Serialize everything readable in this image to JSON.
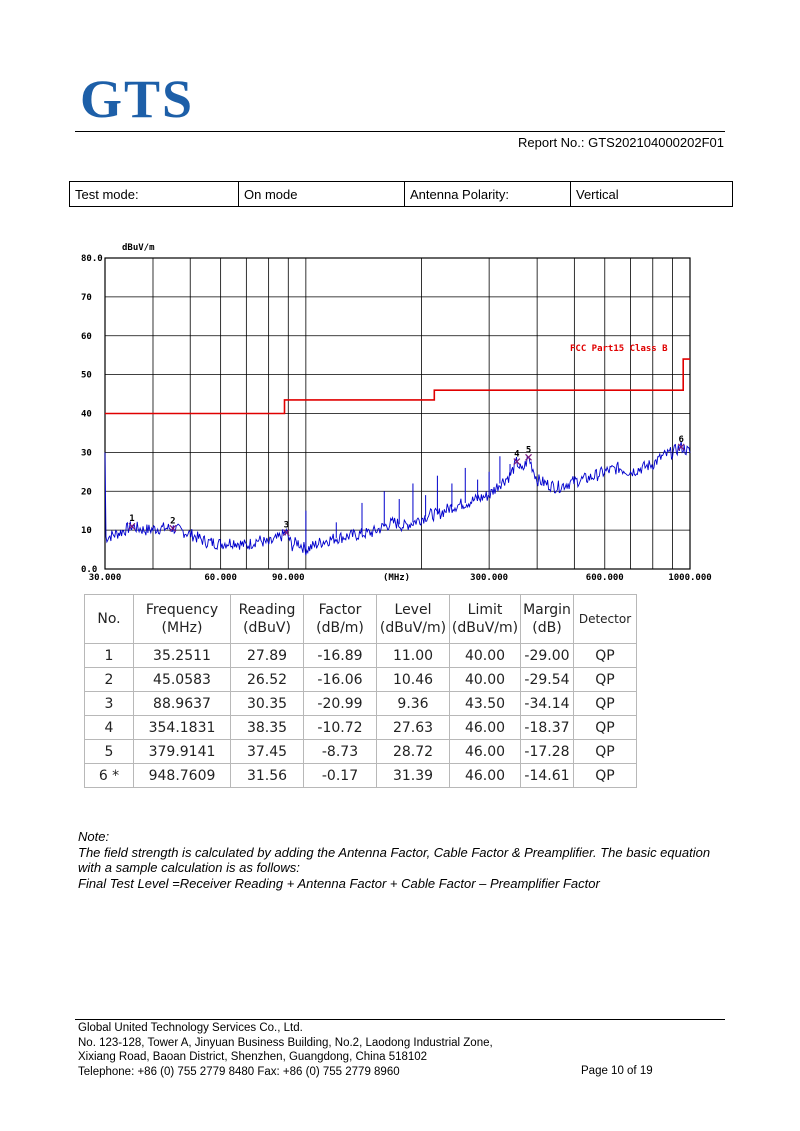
{
  "header": {
    "logo_text": "GTS",
    "report_no": "Report No.: GTS202104000202F01"
  },
  "test_info": {
    "mode_label": "Test mode:",
    "mode_value": "On mode",
    "polarity_label": "Antenna Polarity:",
    "polarity_value": "Vertical"
  },
  "chart": {
    "y_unit": "dBuV/m",
    "x_unit": "(MHz)",
    "limit_label": "FCC Part15 Class B",
    "y_ticks": [
      "80.0",
      "70",
      "60",
      "50",
      "40",
      "30",
      "20",
      "10",
      "0.0"
    ],
    "x_ticks": [
      "30.000",
      "60.000",
      "90.000",
      "300.000",
      "600.000",
      "1000.000"
    ]
  },
  "chart_data": {
    "type": "line",
    "xscale": "log",
    "xlim": [
      30,
      1000
    ],
    "ylim": [
      0,
      80
    ],
    "ylabel": "dBuV/m",
    "xlabel": "(MHz)",
    "grid": true,
    "limit_series": {
      "name": "FCC Part15 Class B",
      "color": "#e00000",
      "points": [
        [
          30,
          40
        ],
        [
          88,
          40
        ],
        [
          88,
          43.5
        ],
        [
          216,
          43.5
        ],
        [
          216,
          46
        ],
        [
          960,
          46
        ],
        [
          960,
          54
        ],
        [
          1000,
          54
        ]
      ]
    },
    "trace_series": {
      "color": "#0000cc",
      "points": [
        [
          30,
          8
        ],
        [
          33,
          9.5
        ],
        [
          35.25,
          11
        ],
        [
          38,
          10
        ],
        [
          42,
          10.5
        ],
        [
          45.06,
          10.5
        ],
        [
          50,
          9
        ],
        [
          55,
          7
        ],
        [
          60,
          6.5
        ],
        [
          65,
          7
        ],
        [
          70,
          6
        ],
        [
          75,
          7.5
        ],
        [
          80,
          6.5
        ],
        [
          85,
          8
        ],
        [
          88.96,
          9.4
        ],
        [
          92,
          6
        ],
        [
          95,
          7
        ],
        [
          100,
          5
        ],
        [
          105,
          6
        ],
        [
          110,
          7
        ],
        [
          120,
          8
        ],
        [
          130,
          8.5
        ],
        [
          140,
          9
        ],
        [
          150,
          9.5
        ],
        [
          160,
          11
        ],
        [
          170,
          12
        ],
        [
          180,
          11
        ],
        [
          190,
          12
        ],
        [
          200,
          13
        ],
        [
          210,
          14
        ],
        [
          220,
          14
        ],
        [
          230,
          15
        ],
        [
          240,
          16
        ],
        [
          260,
          17
        ],
        [
          280,
          18
        ],
        [
          300,
          19
        ],
        [
          320,
          22
        ],
        [
          340,
          24
        ],
        [
          354.18,
          27.6
        ],
        [
          365,
          25
        ],
        [
          379.91,
          28.7
        ],
        [
          400,
          23
        ],
        [
          420,
          22
        ],
        [
          450,
          21
        ],
        [
          480,
          22
        ],
        [
          500,
          22.5
        ],
        [
          550,
          23.5
        ],
        [
          600,
          25
        ],
        [
          650,
          26
        ],
        [
          700,
          25
        ],
        [
          750,
          26
        ],
        [
          800,
          27
        ],
        [
          850,
          29
        ],
        [
          900,
          30
        ],
        [
          948.76,
          31.4
        ],
        [
          1000,
          30
        ]
      ],
      "peaks": [
        [
          100,
          15
        ],
        [
          120,
          12
        ],
        [
          140,
          17
        ],
        [
          160,
          20
        ],
        [
          175,
          18
        ],
        [
          190,
          22
        ],
        [
          205,
          19
        ],
        [
          220,
          24
        ],
        [
          240,
          22
        ],
        [
          260,
          26
        ],
        [
          280,
          23
        ],
        [
          300,
          25
        ],
        [
          320,
          29
        ],
        [
          340,
          27
        ]
      ]
    },
    "markers": [
      {
        "no": "1",
        "x": 35.25,
        "y": 11.0
      },
      {
        "no": "2",
        "x": 45.06,
        "y": 10.46
      },
      {
        "no": "3",
        "x": 88.96,
        "y": 9.36
      },
      {
        "no": "4",
        "x": 354.18,
        "y": 27.63
      },
      {
        "no": "5",
        "x": 379.91,
        "y": 28.72
      },
      {
        "no": "6",
        "x": 948.76,
        "y": 31.39
      }
    ]
  },
  "results": {
    "headers": [
      [
        "No."
      ],
      [
        "Frequency",
        "(MHz)"
      ],
      [
        "Reading",
        "(dBuV)"
      ],
      [
        "Factor",
        "(dB/m)"
      ],
      [
        "Level",
        "(dBuV/m)"
      ],
      [
        "Limit",
        "(dBuV/m)"
      ],
      [
        "Margin",
        "(dB)"
      ],
      [
        "Detector"
      ]
    ],
    "rows": [
      [
        "1",
        "35.2511",
        "27.89",
        "-16.89",
        "11.00",
        "40.00",
        "-29.00",
        "QP"
      ],
      [
        "2",
        "45.0583",
        "26.52",
        "-16.06",
        "10.46",
        "40.00",
        "-29.54",
        "QP"
      ],
      [
        "3",
        "88.9637",
        "30.35",
        "-20.99",
        "9.36",
        "43.50",
        "-34.14",
        "QP"
      ],
      [
        "4",
        "354.1831",
        "38.35",
        "-10.72",
        "27.63",
        "46.00",
        "-18.37",
        "QP"
      ],
      [
        "5",
        "379.9141",
        "37.45",
        "-8.73",
        "28.72",
        "46.00",
        "-17.28",
        "QP"
      ],
      [
        "6 *",
        "948.7609",
        "31.56",
        "-0.17",
        "31.39",
        "46.00",
        "-14.61",
        "QP"
      ]
    ]
  },
  "note": {
    "title": "Note:",
    "line1": "The field strength is calculated by adding the Antenna Factor, Cable Factor & Preamplifier. The basic equation with a sample calculation is as follows:",
    "line2": "Final Test Level =Receiver Reading + Antenna Factor + Cable Factor – Preamplifier Factor"
  },
  "footer": {
    "company": "Global United Technology Services Co., Ltd.",
    "address1": "No. 123-128, Tower A, Jinyuan Business Building, No.2, Laodong Industrial Zone,",
    "address2": "Xixiang Road, Baoan District, Shenzhen, Guangdong, China 518102",
    "contact": "Telephone: +86 (0) 755 2779 8480  Fax: +86 (0) 755 2779 8960",
    "page": "Page 10 of 19"
  }
}
